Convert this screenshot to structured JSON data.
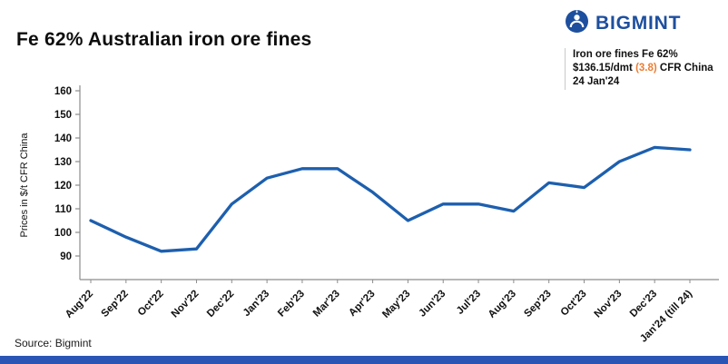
{
  "header": {
    "title": "Fe 62% Australian iron ore fines"
  },
  "brand": {
    "name": "BIGMINT",
    "color": "#1d4f9e",
    "accent_bar_color": "#2a55b4"
  },
  "callout": {
    "line1": "Iron ore fines Fe 62%",
    "price": "$136.15/dmt",
    "change": "(3.8)",
    "suffix": "CFR China",
    "date": "24 Jan'24",
    "change_color": "#ed7d31"
  },
  "footer": {
    "source": "Source: Bigmint"
  },
  "chart_data": {
    "type": "line",
    "title": "Fe 62% Australian iron ore fines",
    "ylabel": "Prices in $/t CFR China",
    "xlabel": "",
    "categories": [
      "Aug'22",
      "Sep'22",
      "Oct'22",
      "Nov'22",
      "Dec'22",
      "Jan'23",
      "Feb'23",
      "Mar'23",
      "Apr'23",
      "May'23",
      "Jun'23",
      "Jul'23",
      "Aug'23",
      "Sep'23",
      "Oct'23",
      "Nov'23",
      "Dec'23",
      "Jan'24 (till 24)"
    ],
    "values": [
      105,
      98,
      92,
      93,
      112,
      123,
      127,
      127,
      117,
      105,
      112,
      112,
      109,
      121,
      119,
      130,
      136,
      135
    ],
    "ylim": [
      90,
      160
    ],
    "ytick_interval": 10,
    "line_color": "#1d5fae",
    "axis_color": "#8c8c8c",
    "grid": false,
    "legend": "none"
  }
}
